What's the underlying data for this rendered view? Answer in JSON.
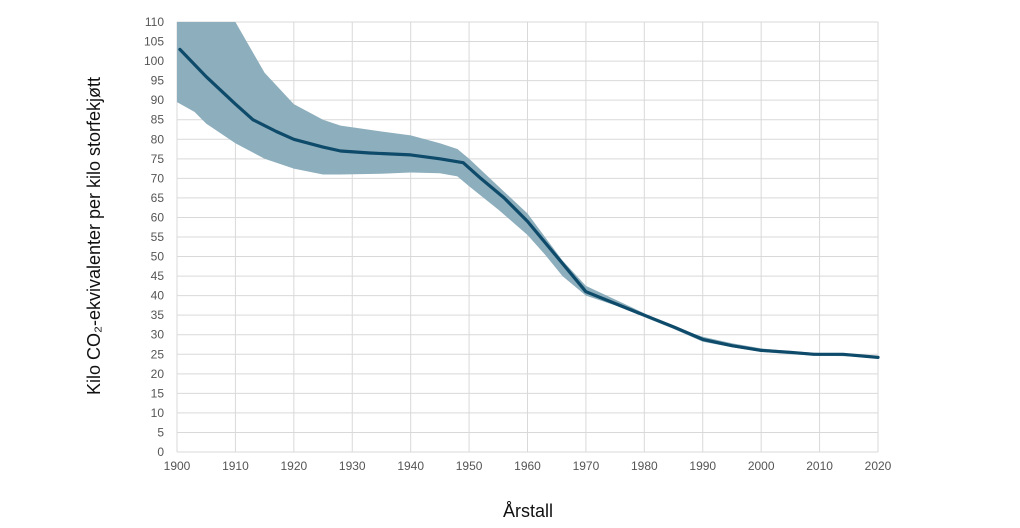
{
  "chart_data": {
    "type": "line",
    "title": "",
    "xlabel": "Årstall",
    "ylabel": "Kilo CO₂-ekvivalenter per kilo storfekjøtt",
    "xlim": [
      1900,
      2020
    ],
    "ylim": [
      0,
      110
    ],
    "x_ticks": [
      1900,
      1910,
      1920,
      1930,
      1940,
      1950,
      1960,
      1970,
      1980,
      1990,
      2000,
      2010,
      2020
    ],
    "y_ticks": [
      0,
      5,
      10,
      15,
      20,
      25,
      30,
      35,
      40,
      45,
      50,
      55,
      60,
      65,
      70,
      75,
      80,
      85,
      90,
      95,
      100,
      105,
      110
    ],
    "grid": true,
    "legend": "none",
    "colors": {
      "line": "#0e4a6a",
      "band": "#8daebc"
    },
    "series": [
      {
        "type": "line",
        "points": [
          [
            1900.5,
            103
          ],
          [
            1905,
            96
          ],
          [
            1910,
            89
          ],
          [
            1913,
            85
          ],
          [
            1917,
            82
          ],
          [
            1920,
            80
          ],
          [
            1925,
            78
          ],
          [
            1928,
            77
          ],
          [
            1933,
            76.5
          ],
          [
            1940,
            76
          ],
          [
            1945,
            75
          ],
          [
            1949,
            74
          ],
          [
            1952,
            70
          ],
          [
            1956,
            65
          ],
          [
            1960,
            59
          ],
          [
            1965,
            50
          ],
          [
            1970,
            41
          ],
          [
            1975,
            38
          ],
          [
            1980,
            35
          ],
          [
            1985,
            32
          ],
          [
            1990,
            28.8
          ],
          [
            1995,
            27.2
          ],
          [
            2000,
            26
          ],
          [
            2005,
            25.5
          ],
          [
            2009,
            25
          ],
          [
            2014,
            25
          ],
          [
            2020,
            24.2
          ]
        ]
      },
      {
        "type": "band",
        "x": [
          1900,
          1903,
          1905,
          1908,
          1910,
          1915,
          1920,
          1925,
          1928,
          1935,
          1940,
          1945,
          1948,
          1950,
          1955,
          1960,
          1963,
          1966,
          1970,
          1975,
          1980,
          1985,
          1990,
          1995,
          2000,
          2005,
          2010,
          2015,
          2020
        ],
        "upper": [
          110,
          110,
          110,
          110,
          110,
          97,
          89,
          85,
          83.5,
          82,
          81,
          79,
          77.5,
          75,
          68,
          61,
          55,
          49,
          42.5,
          39,
          35.5,
          32,
          29.5,
          27.8,
          26.5,
          25.8,
          25.3,
          25.2,
          24.5
        ],
        "lower": [
          89.5,
          87,
          84,
          81,
          79,
          75,
          72.5,
          71,
          71,
          71.2,
          71.5,
          71.3,
          70.5,
          68,
          62,
          55.5,
          50.5,
          45,
          40,
          37.5,
          34.5,
          31.5,
          28.2,
          26.8,
          25.6,
          25,
          24.6,
          24.5,
          23.9
        ]
      }
    ]
  }
}
